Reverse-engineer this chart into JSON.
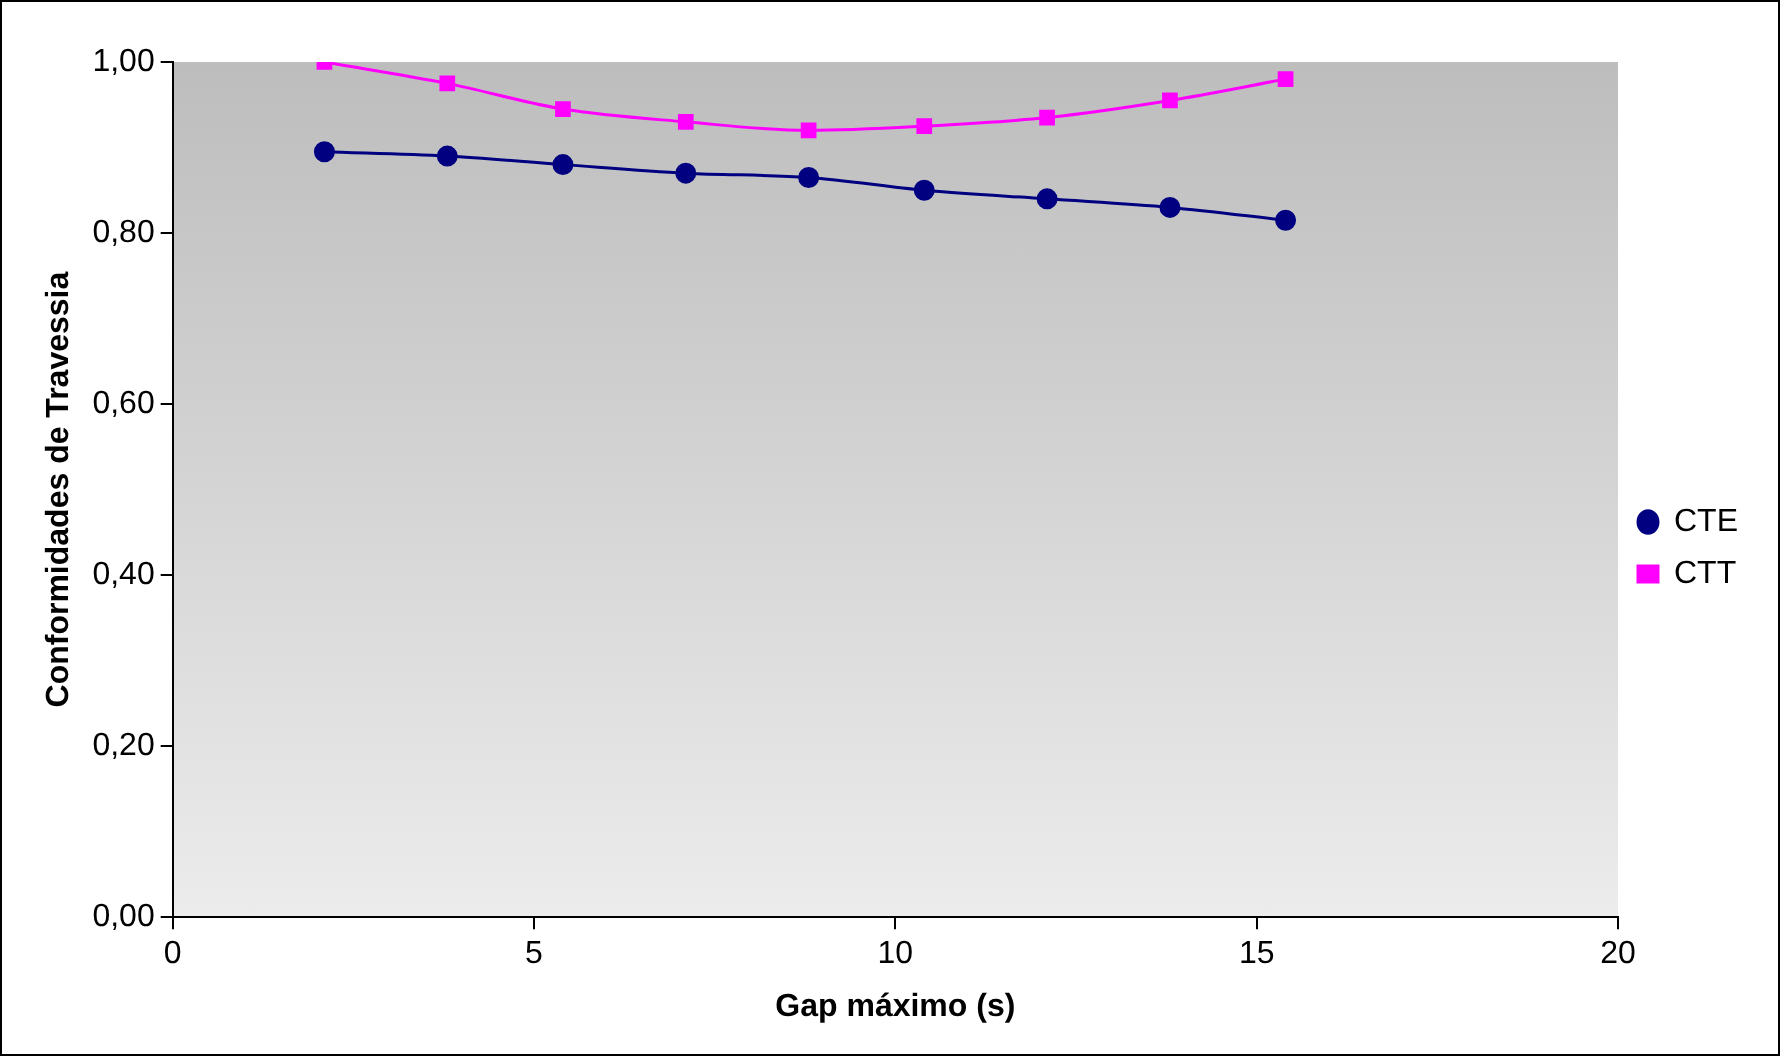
{
  "chart_data": {
    "type": "line",
    "xlabel": "Gap máximo (s)",
    "ylabel": "Conformidades de Travessia",
    "x": [
      2.1,
      3.8,
      5.4,
      7.1,
      8.8,
      10.4,
      12.1,
      13.8,
      15.4
    ],
    "series": [
      {
        "name": "CTE",
        "color": "#000080",
        "marker": "circle",
        "values": [
          0.895,
          0.89,
          0.88,
          0.87,
          0.865,
          0.85,
          0.84,
          0.83,
          0.815
        ]
      },
      {
        "name": "CTT",
        "color": "#ff00ff",
        "marker": "square",
        "values": [
          1.0,
          0.975,
          0.945,
          0.93,
          0.92,
          0.925,
          0.935,
          0.955,
          0.98
        ]
      }
    ],
    "xlim": [
      0,
      20
    ],
    "xticks": [
      0,
      5,
      10,
      15,
      20
    ],
    "ylim": [
      0,
      1
    ],
    "yticks": [
      {
        "value": 0,
        "label": "0,00"
      },
      {
        "value": 0.2,
        "label": "0,20"
      },
      {
        "value": 0.4,
        "label": "0,40"
      },
      {
        "value": 0.6,
        "label": "0,60"
      },
      {
        "value": 0.8,
        "label": "0,80"
      },
      {
        "value": 1,
        "label": "1,00"
      }
    ],
    "grid": false,
    "legend": "right"
  }
}
